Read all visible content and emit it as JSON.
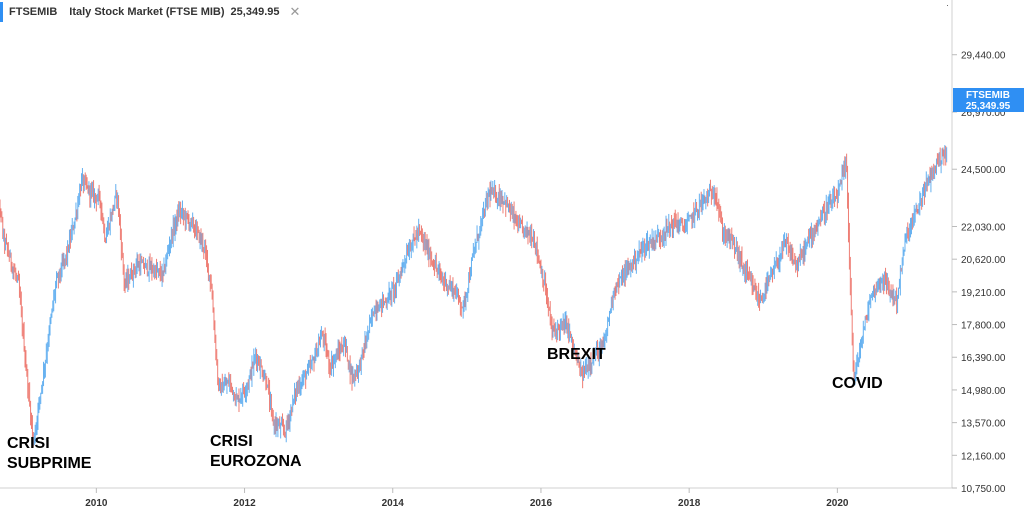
{
  "legend": {
    "symbol": "FTSEMIB",
    "name": "Italy Stock Market (FTSE MIB)",
    "value": "25,349.95",
    "close_icon": "close-icon"
  },
  "last_badge": {
    "symbol": "FTSEMIB",
    "value": "25,349.95"
  },
  "annotations": {
    "subprime_line1": "CRISI",
    "subprime_line2": "SUBPRIME",
    "eurozona_line1": "CRISI",
    "eurozona_line2": "EUROZONA",
    "brexit": "BREXIT",
    "covid": "COVID"
  },
  "colors": {
    "up": "#64b0f0",
    "down": "#ee7d74",
    "badge": "#2f8ff3",
    "axis": "#d0d0d0"
  },
  "chart_data": {
    "type": "ohlc",
    "series": [
      {
        "name": "FTSEMIB"
      }
    ],
    "x_range": [
      2008.6,
      2021.5
    ],
    "y_range": [
      10750,
      30900
    ],
    "x_ticks": [
      "2010",
      "2012",
      "2014",
      "2016",
      "2018",
      "2020"
    ],
    "y_ticks": [
      "29,440.00",
      "26,970.00",
      "24,500.00",
      "22,030.00",
      "20,620.00",
      "19,210.00",
      "17,800.00",
      "16,390.00",
      "14,980.00",
      "13,570.00",
      "12,160.00",
      "10,750.00"
    ],
    "anchors": [
      [
        2008.6,
        25200
      ],
      [
        2008.75,
        21500
      ],
      [
        2008.95,
        19500
      ],
      [
        2009.05,
        16000
      ],
      [
        2009.15,
        12700
      ],
      [
        2009.32,
        16500
      ],
      [
        2009.45,
        19500
      ],
      [
        2009.6,
        20800
      ],
      [
        2009.72,
        22500
      ],
      [
        2009.8,
        24000
      ],
      [
        2009.92,
        23500
      ],
      [
        2010.05,
        23200
      ],
      [
        2010.12,
        21500
      ],
      [
        2010.28,
        23500
      ],
      [
        2010.38,
        19500
      ],
      [
        2010.55,
        20400
      ],
      [
        2010.75,
        20200
      ],
      [
        2010.9,
        19900
      ],
      [
        2011.0,
        21500
      ],
      [
        2011.12,
        22700
      ],
      [
        2011.32,
        22000
      ],
      [
        2011.45,
        21200
      ],
      [
        2011.55,
        19500
      ],
      [
        2011.65,
        15000
      ],
      [
        2011.8,
        15300
      ],
      [
        2011.9,
        14500
      ],
      [
        2012.05,
        15300
      ],
      [
        2012.15,
        16500
      ],
      [
        2012.3,
        15300
      ],
      [
        2012.38,
        13600
      ],
      [
        2012.55,
        13200
      ],
      [
        2012.7,
        15000
      ],
      [
        2012.9,
        16000
      ],
      [
        2013.05,
        17400
      ],
      [
        2013.15,
        16000
      ],
      [
        2013.35,
        17000
      ],
      [
        2013.45,
        15500
      ],
      [
        2013.55,
        16000
      ],
      [
        2013.75,
        18500
      ],
      [
        2013.9,
        18800
      ],
      [
        2014.05,
        19500
      ],
      [
        2014.2,
        21000
      ],
      [
        2014.35,
        21800
      ],
      [
        2014.5,
        20800
      ],
      [
        2014.65,
        19800
      ],
      [
        2014.85,
        19200
      ],
      [
        2014.95,
        18500
      ],
      [
        2015.1,
        21000
      ],
      [
        2015.3,
        23500
      ],
      [
        2015.5,
        23200
      ],
      [
        2015.7,
        22000
      ],
      [
        2015.9,
        21600
      ],
      [
        2016.05,
        19500
      ],
      [
        2016.15,
        17500
      ],
      [
        2016.35,
        17800
      ],
      [
        2016.48,
        16300
      ],
      [
        2016.55,
        15600
      ],
      [
        2016.7,
        16400
      ],
      [
        2016.85,
        16900
      ],
      [
        2016.98,
        19300
      ],
      [
        2017.2,
        20300
      ],
      [
        2017.4,
        21200
      ],
      [
        2017.6,
        21600
      ],
      [
        2017.8,
        22200
      ],
      [
        2017.95,
        22000
      ],
      [
        2018.15,
        23000
      ],
      [
        2018.35,
        23600
      ],
      [
        2018.45,
        21800
      ],
      [
        2018.6,
        21300
      ],
      [
        2018.75,
        20100
      ],
      [
        2018.95,
        18800
      ],
      [
        2019.1,
        19800
      ],
      [
        2019.3,
        21300
      ],
      [
        2019.45,
        20300
      ],
      [
        2019.65,
        21700
      ],
      [
        2019.85,
        22800
      ],
      [
        2020.0,
        23300
      ],
      [
        2020.12,
        24800
      ],
      [
        2020.17,
        20000
      ],
      [
        2020.22,
        15300
      ],
      [
        2020.32,
        17000
      ],
      [
        2020.45,
        19000
      ],
      [
        2020.6,
        19800
      ],
      [
        2020.7,
        19300
      ],
      [
        2020.8,
        18800
      ],
      [
        2020.92,
        21500
      ],
      [
        2021.05,
        22500
      ],
      [
        2021.2,
        23800
      ],
      [
        2021.35,
        24800
      ],
      [
        2021.48,
        25349.95
      ]
    ]
  }
}
